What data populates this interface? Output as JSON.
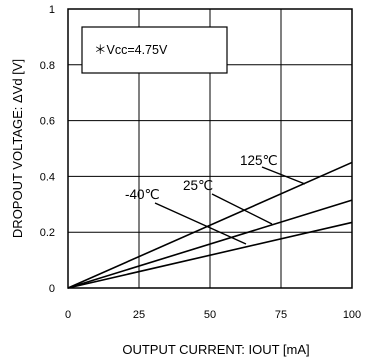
{
  "chart_data": {
    "type": "line",
    "xlabel": "OUTPUT CURRENT: IOUT [mA]",
    "ylabel": "DROPOUT VOLTAGE: ΔVd [V]",
    "xlim": [
      0,
      100
    ],
    "ylim": [
      0,
      1
    ],
    "x_ticks": [
      "0",
      "25",
      "50",
      "75",
      "100"
    ],
    "y_ticks": [
      "0",
      "0.2",
      "0.4",
      "0.6",
      "0.8",
      "1"
    ],
    "grid": true,
    "note": "＊Vcc=4.75V",
    "series": [
      {
        "name": "125℃",
        "x": [
          0,
          100
        ],
        "y": [
          0,
          0.45
        ]
      },
      {
        "name": "25℃",
        "x": [
          0,
          100
        ],
        "y": [
          0,
          0.315
        ]
      },
      {
        "name": "-40℃",
        "x": [
          0,
          100
        ],
        "y": [
          0,
          0.235
        ]
      }
    ]
  }
}
